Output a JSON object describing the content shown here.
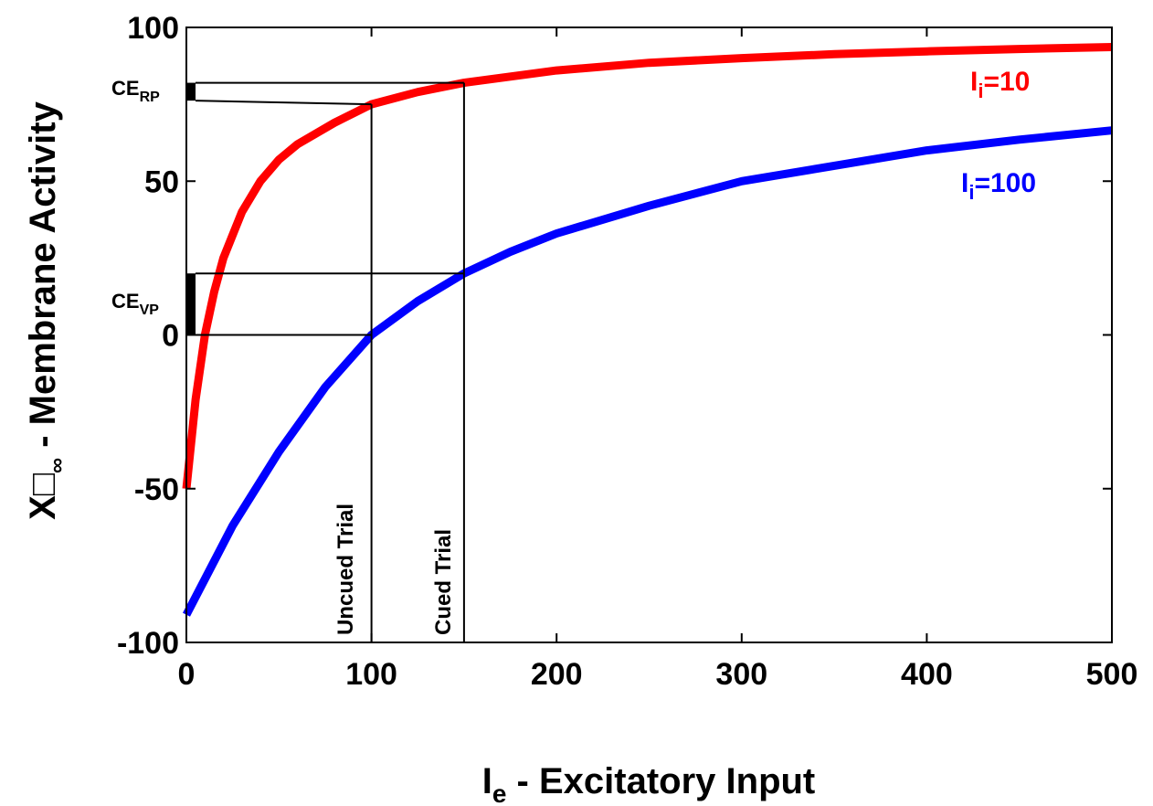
{
  "chart_data": {
    "type": "line",
    "xlabel_main": "I",
    "xlabel_sub": "e",
    "xlabel_rest": " - Excitatory Input",
    "ylabel_main": "X",
    "ylabel_glyph": "□",
    "ylabel_sub": "∞",
    "ylabel_rest": " - Membrane Activity",
    "xlim": [
      0,
      500
    ],
    "ylim": [
      -100,
      100
    ],
    "xticks": [
      0,
      100,
      200,
      300,
      400,
      500
    ],
    "yticks": [
      -100,
      -50,
      0,
      50,
      100
    ],
    "grid": false,
    "legend": "none",
    "series": [
      {
        "name": "Ii=10",
        "label_main": "I",
        "label_sub": "i",
        "label_rest": "=10",
        "color": "#ff0000",
        "x": [
          0,
          5,
          10,
          15,
          20,
          30,
          40,
          50,
          60,
          80,
          100,
          125,
          150,
          175,
          200,
          250,
          300,
          350,
          400,
          450,
          500
        ],
        "y": [
          -50,
          -21,
          0,
          14,
          25,
          40,
          50,
          57,
          62,
          69,
          75,
          79,
          82,
          84,
          86,
          88.5,
          90,
          91.3,
          92.2,
          93,
          93.6
        ]
      },
      {
        "name": "Ii=100",
        "label_main": "I",
        "label_sub": "i",
        "label_rest": "=100",
        "color": "#0000ff",
        "x": [
          0,
          25,
          50,
          75,
          100,
          125,
          150,
          175,
          200,
          250,
          300,
          350,
          400,
          450,
          500
        ],
        "y": [
          -91,
          -62,
          -38,
          -17,
          0,
          11,
          20,
          27,
          33,
          42,
          50,
          55,
          60,
          63.5,
          66.5
        ]
      }
    ],
    "guides": [
      {
        "label": "Uncued Trial",
        "x": 100
      },
      {
        "label": "Cued Trial",
        "x": 150
      }
    ],
    "brackets": [
      {
        "label_main": "CE",
        "label_sub": "RP",
        "y_low": 76,
        "y_high": 84
      },
      {
        "label_main": "CE",
        "label_sub": "VP",
        "y_low": 0,
        "y_high": 21
      }
    ]
  }
}
